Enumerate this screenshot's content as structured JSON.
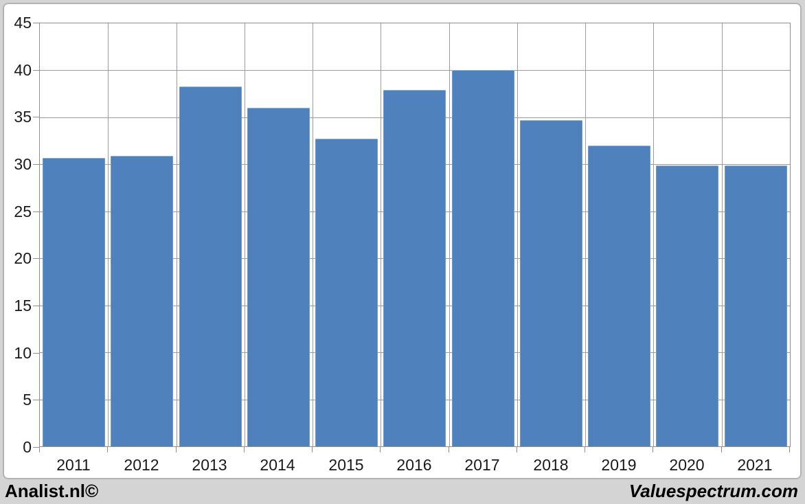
{
  "chart_data": {
    "type": "bar",
    "categories": [
      "2011",
      "2012",
      "2013",
      "2014",
      "2015",
      "2016",
      "2017",
      "2018",
      "2019",
      "2020",
      "2021"
    ],
    "values": [
      30.7,
      30.9,
      38.3,
      36.0,
      32.7,
      37.9,
      40.0,
      34.7,
      32.0,
      29.9,
      29.9
    ],
    "title": "",
    "xlabel": "",
    "ylabel": "",
    "ylim": [
      0,
      45
    ],
    "yticks": [
      0,
      5,
      10,
      15,
      20,
      25,
      30,
      35,
      40,
      45
    ],
    "grid": true,
    "legend_position": "none",
    "bar_color": "#4f81bd",
    "gridline_color": "#9c9c9c",
    "plot_border_color": "#8f8f8f",
    "plot_bg": "#ffffff"
  },
  "frame": {
    "outer_bg": "#d4d4d4",
    "panel_bg": "#ffffff",
    "panel_border": "#b3b3b3",
    "text_color": "#1a1a1a"
  },
  "footer": {
    "left": "Analist.nl©",
    "right": "Valuespectrum.com"
  }
}
